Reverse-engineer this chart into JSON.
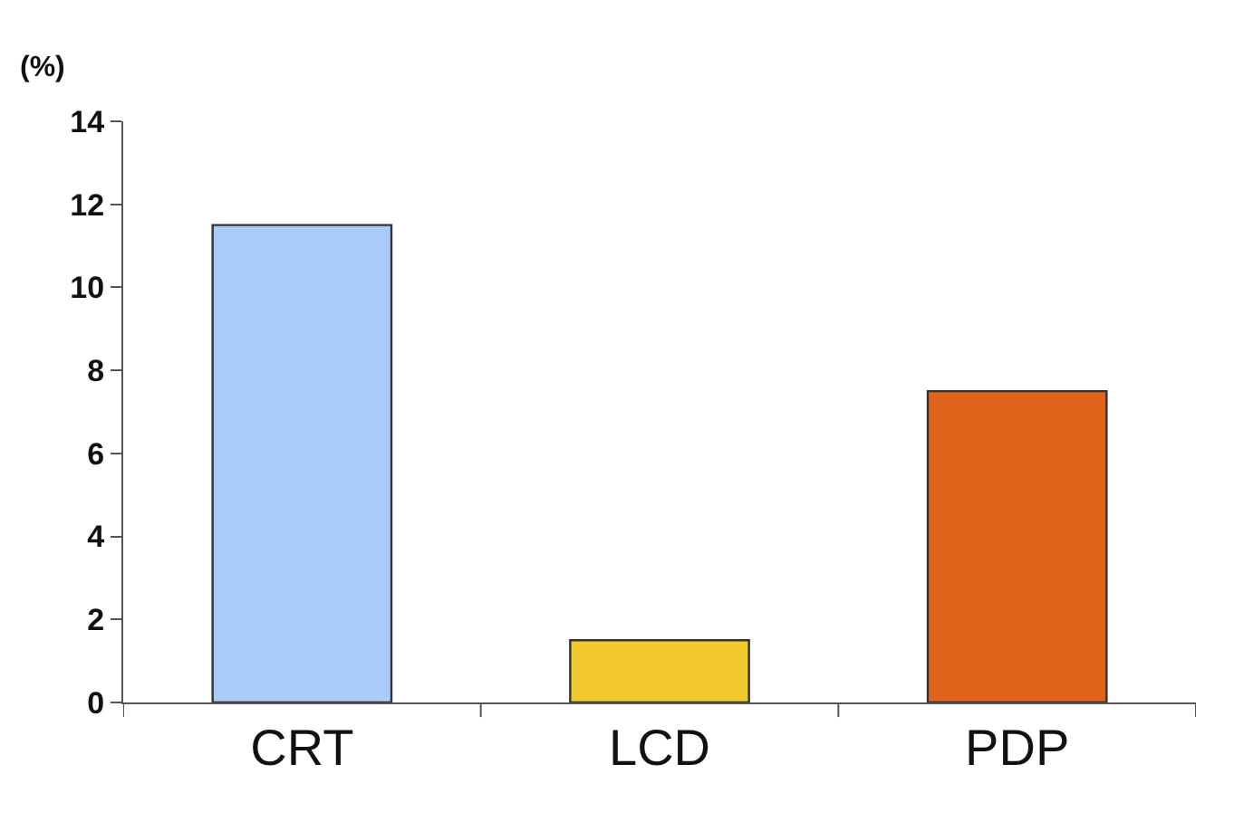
{
  "chart_data": {
    "type": "bar",
    "ylabel": "(%)",
    "categories": [
      "CRT",
      "LCD",
      "PDP"
    ],
    "values": [
      11.5,
      1.5,
      7.5
    ],
    "colors": [
      "#a8cbf7",
      "#f2c92c",
      "#e0621b"
    ],
    "ylim": [
      0,
      14
    ],
    "yticks": [
      0,
      2,
      4,
      6,
      8,
      10,
      12,
      14
    ]
  }
}
